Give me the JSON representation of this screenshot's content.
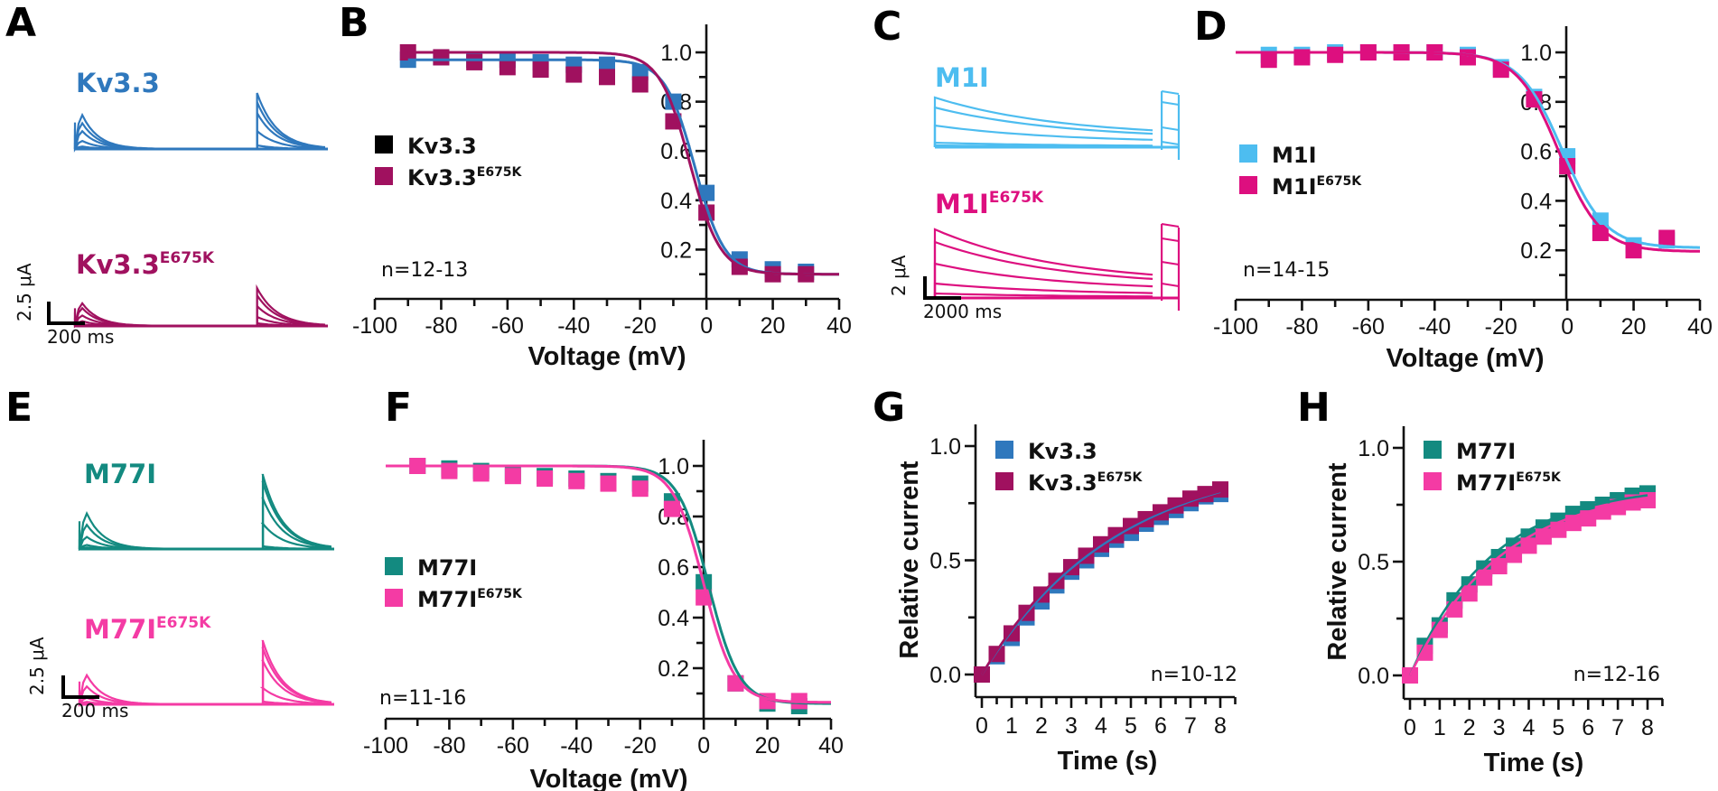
{
  "colors": {
    "kv33": "#2f78bd",
    "kv33_e675k": "#a0115f",
    "m1i": "#4dbdf0",
    "m1i_e675k": "#dd0f7f",
    "m77i": "#138a80",
    "m77i_e675k": "#f43ba4",
    "axis": "#111111"
  },
  "panels": {
    "A": {
      "letter": "A",
      "traces": [
        {
          "label": "Kv3.3",
          "sup": "",
          "color_key": "kv33"
        },
        {
          "label": "Kv3.3",
          "sup": "E675K",
          "color_key": "kv33_e675k"
        }
      ],
      "scale_bar": {
        "y_label": "2.5 μA",
        "x_label": "200 ms"
      }
    },
    "C": {
      "letter": "C",
      "traces": [
        {
          "label": "M1I",
          "sup": "",
          "color_key": "m1i"
        },
        {
          "label": "M1I",
          "sup": "E675K",
          "color_key": "m1i_e675k"
        }
      ],
      "scale_bar": {
        "y_label": "2 μA",
        "x_label": "2000 ms"
      }
    },
    "E": {
      "letter": "E",
      "traces": [
        {
          "label": "M77I",
          "sup": "",
          "color_key": "m77i"
        },
        {
          "label": "M77I",
          "sup": "E675K",
          "color_key": "m77i_e675k"
        }
      ],
      "scale_bar": {
        "y_label": "2.5 μA",
        "x_label": "200 ms"
      }
    }
  },
  "chart_data": [
    {
      "panel": "B",
      "type": "scatter",
      "title": "",
      "xlabel": "Voltage (mV)",
      "ylabel": "",
      "xlim": [
        -100,
        40
      ],
      "ylim": [
        0,
        1.1
      ],
      "xticks": [
        -100,
        -80,
        -60,
        -40,
        -20,
        0,
        20,
        40
      ],
      "yticks": [
        0.2,
        0.4,
        0.6,
        0.8,
        1.0
      ],
      "ytick_labels": [
        "0.2",
        "0.4",
        "0.6",
        "0.8",
        "1.0"
      ],
      "annotation": "n=12-13",
      "legend_position": "left-middle",
      "x": [
        -90,
        -80,
        -70,
        -60,
        -50,
        -40,
        -30,
        -20,
        -10,
        0,
        10,
        20,
        30
      ],
      "series": [
        {
          "name": "Kv3.3",
          "sup": "",
          "color_key": "kv33",
          "legend_swatch": "#000000",
          "values": [
            0.97,
            0.98,
            0.97,
            0.97,
            0.96,
            0.95,
            0.95,
            0.92,
            0.8,
            0.43,
            0.16,
            0.12,
            0.11
          ],
          "fit": {
            "top": 0.97,
            "bottom": 0.1,
            "v_half": -3.5,
            "k": 4.5
          }
        },
        {
          "name": "Kv3.3",
          "sup": "E675K",
          "color_key": "kv33_e675k",
          "legend_swatch": "#a0115f",
          "values": [
            1.0,
            0.98,
            0.96,
            0.94,
            0.93,
            0.91,
            0.9,
            0.87,
            0.72,
            0.35,
            0.13,
            0.1,
            0.1
          ],
          "fit": {
            "top": 1.0,
            "bottom": 0.1,
            "v_half": -5.0,
            "k": 4.6
          }
        }
      ]
    },
    {
      "panel": "D",
      "type": "scatter",
      "title": "",
      "xlabel": "Voltage (mV)",
      "ylabel": "",
      "xlim": [
        -100,
        40
      ],
      "ylim": [
        0,
        1.1
      ],
      "xticks": [
        -100,
        -80,
        -60,
        -40,
        -20,
        0,
        20,
        40
      ],
      "yticks": [
        0.2,
        0.4,
        0.6,
        0.8,
        1.0
      ],
      "ytick_labels": [
        "0.2",
        "0.4",
        "0.6",
        "0.8",
        "1.0"
      ],
      "annotation": "n=14-15",
      "legend_position": "left-middle",
      "x": [
        -90,
        -80,
        -70,
        -60,
        -50,
        -40,
        -30,
        -20,
        -10,
        0,
        10,
        20,
        30
      ],
      "series": [
        {
          "name": "M1I",
          "sup": "",
          "color_key": "m1i",
          "legend_swatch": "#4dbdf0",
          "values": [
            0.99,
            0.99,
            1.0,
            1.0,
            1.0,
            1.0,
            0.99,
            0.94,
            0.82,
            0.58,
            0.32,
            0.22,
            0.24
          ],
          "fit": {
            "top": 1.0,
            "bottom": 0.21,
            "v_half": -1.5,
            "k": 6.5
          }
        },
        {
          "name": "M1I",
          "sup": "E675K",
          "color_key": "m1i_e675k",
          "legend_swatch": "#dd0f7f",
          "values": [
            0.97,
            0.98,
            0.99,
            1.0,
            1.0,
            1.0,
            0.98,
            0.93,
            0.81,
            0.54,
            0.27,
            0.2,
            0.25
          ],
          "fit": {
            "top": 1.0,
            "bottom": 0.195,
            "v_half": -2.5,
            "k": 6.3
          }
        }
      ]
    },
    {
      "panel": "F",
      "type": "scatter",
      "title": "",
      "xlabel": "Voltage (mV)",
      "ylabel": "",
      "xlim": [
        -100,
        40
      ],
      "ylim": [
        0,
        1.1
      ],
      "xticks": [
        -100,
        -80,
        -60,
        -40,
        -20,
        0,
        20,
        40
      ],
      "yticks": [
        0.2,
        0.4,
        0.6,
        0.8,
        1.0
      ],
      "ytick_labels": [
        "0.2",
        "0.4",
        "0.6",
        "0.8",
        "1.0"
      ],
      "annotation": "n=11-16",
      "legend_position": "left-middle",
      "x": [
        -90,
        -80,
        -70,
        -60,
        -50,
        -40,
        -30,
        -20,
        -10,
        0,
        10,
        20,
        30
      ],
      "series": [
        {
          "name": "M77I",
          "sup": "",
          "color_key": "m77i",
          "legend_swatch": "#138a80",
          "values": [
            1.0,
            0.99,
            0.98,
            0.97,
            0.96,
            0.95,
            0.94,
            0.93,
            0.86,
            0.54,
            0.14,
            0.06,
            0.05
          ],
          "fit": {
            "top": 1.0,
            "bottom": 0.06,
            "v_half": 1.5,
            "k": 4.8
          }
        },
        {
          "name": "M77I",
          "sup": "E675K",
          "color_key": "m77i_e675k",
          "legend_swatch": "#f43ba4",
          "values": [
            1.0,
            0.98,
            0.97,
            0.96,
            0.95,
            0.94,
            0.93,
            0.91,
            0.83,
            0.48,
            0.14,
            0.07,
            0.07
          ],
          "fit": {
            "top": 1.0,
            "bottom": 0.065,
            "v_half": 0.0,
            "k": 4.8
          }
        }
      ]
    },
    {
      "panel": "G",
      "type": "scatter",
      "title": "",
      "xlabel": "Time (s)",
      "ylabel": "Relative current",
      "xlim": [
        -0.2,
        8.5
      ],
      "ylim": [
        -0.1,
        1.1
      ],
      "xticks": [
        0,
        1,
        2,
        3,
        4,
        5,
        6,
        7,
        8
      ],
      "yticks": [
        0.0,
        0.5,
        1.0
      ],
      "ytick_labels": [
        "0.0",
        "0.5",
        "1.0"
      ],
      "annotation": "n=10-12",
      "legend_position": "top-left",
      "x": [
        0,
        0.5,
        1,
        1.5,
        2,
        2.5,
        3,
        3.5,
        4,
        4.5,
        5,
        5.5,
        6,
        6.5,
        7,
        7.5,
        8
      ],
      "series": [
        {
          "name": "Kv3.3",
          "sup": "",
          "color_key": "kv33",
          "legend_swatch": "#2f78bd",
          "values": [
            0.0,
            0.08,
            0.16,
            0.25,
            0.32,
            0.39,
            0.45,
            0.5,
            0.55,
            0.59,
            0.62,
            0.66,
            0.69,
            0.72,
            0.75,
            0.78,
            0.79
          ],
          "fit": {
            "amp": 0.97,
            "tau": 4.6
          }
        },
        {
          "name": "Kv3.3",
          "sup": "E675K",
          "color_key": "kv33_e675k",
          "legend_swatch": "#a0115f",
          "values": [
            0.0,
            0.09,
            0.18,
            0.27,
            0.35,
            0.41,
            0.47,
            0.52,
            0.57,
            0.61,
            0.65,
            0.68,
            0.71,
            0.74,
            0.77,
            0.79,
            0.81
          ],
          "fit": {
            "amp": 0.95,
            "tau": 4.3
          }
        }
      ]
    },
    {
      "panel": "H",
      "type": "scatter",
      "title": "",
      "xlabel": "Time (s)",
      "ylabel": "Relative current",
      "xlim": [
        -0.2,
        8.5
      ],
      "ylim": [
        -0.1,
        1.1
      ],
      "xticks": [
        0,
        1,
        2,
        3,
        4,
        5,
        6,
        7,
        8
      ],
      "yticks": [
        0.0,
        0.5,
        1.0
      ],
      "ytick_labels": [
        "0.0",
        "0.5",
        "1.0"
      ],
      "annotation": "n=12-16",
      "legend_position": "top-left",
      "x": [
        0,
        0.5,
        1,
        1.5,
        2,
        2.5,
        3,
        3.5,
        4,
        4.5,
        5,
        5.5,
        6,
        6.5,
        7,
        7.5,
        8
      ],
      "series": [
        {
          "name": "M77I",
          "sup": "",
          "color_key": "m77i",
          "legend_swatch": "#138a80",
          "values": [
            0.0,
            0.13,
            0.22,
            0.33,
            0.4,
            0.47,
            0.52,
            0.57,
            0.61,
            0.65,
            0.68,
            0.71,
            0.73,
            0.75,
            0.77,
            0.79,
            0.8
          ],
          "fit": {
            "amp": 0.84,
            "tau": 2.8
          }
        },
        {
          "name": "M77I",
          "sup": "E675K",
          "color_key": "m77i_e675k",
          "legend_swatch": "#f43ba4",
          "values": [
            0.0,
            0.1,
            0.2,
            0.29,
            0.36,
            0.43,
            0.48,
            0.53,
            0.57,
            0.61,
            0.64,
            0.67,
            0.69,
            0.72,
            0.74,
            0.76,
            0.77
          ],
          "fit": {
            "amp": 0.84,
            "tau": 3.1
          }
        }
      ]
    }
  ]
}
